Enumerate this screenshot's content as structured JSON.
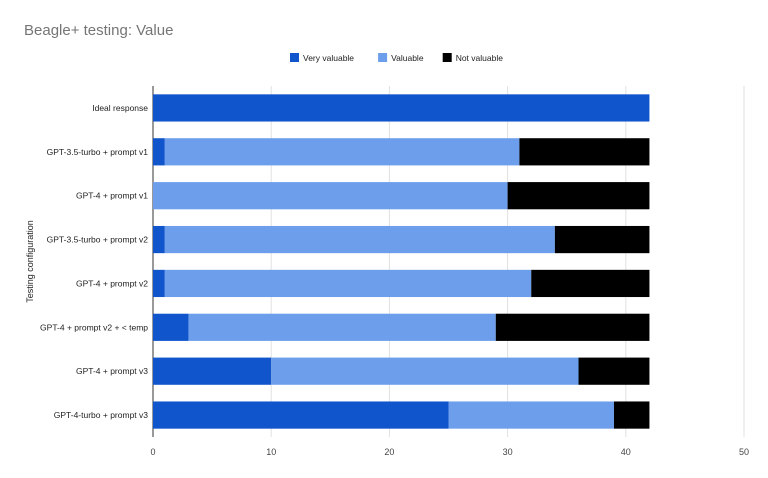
{
  "chart_data": {
    "type": "bar",
    "orientation": "horizontal",
    "stacked": true,
    "title": "Beagle+ testing: Value",
    "ylabel": "Testing configuration",
    "xlabel": "",
    "xlim": [
      0,
      50
    ],
    "xticks": [
      0,
      10,
      20,
      30,
      40,
      50
    ],
    "grid": true,
    "legend_position": "top",
    "categories": [
      "Ideal response",
      "GPT-3.5-turbo + prompt v1",
      "GPT-4 + prompt v1",
      "GPT-3.5-turbo + prompt v2",
      "GPT-4 + prompt v2",
      "GPT-4 + prompt v2 + < temp",
      "GPT-4 + prompt v3",
      "GPT-4-turbo + prompt v3"
    ],
    "series": [
      {
        "name": "Very valuable",
        "color": "#1155cc",
        "values": [
          42,
          1,
          0,
          1,
          1,
          3,
          10,
          25
        ]
      },
      {
        "name": "Valuable",
        "color": "#6d9eeb",
        "values": [
          0,
          30,
          30,
          33,
          31,
          26,
          26,
          14
        ]
      },
      {
        "name": "Not valuable",
        "color": "#000000",
        "values": [
          0,
          11,
          12,
          8,
          10,
          13,
          6,
          3
        ]
      }
    ]
  }
}
